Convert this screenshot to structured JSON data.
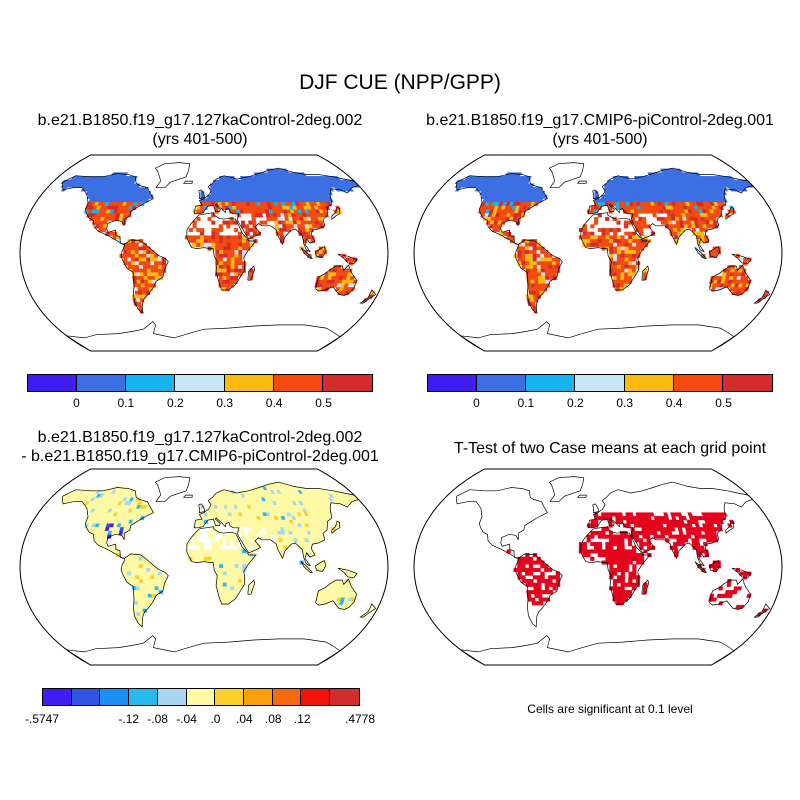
{
  "title": "DJF CUE (NPP/GPP)",
  "panels": [
    {
      "id": "case1",
      "title_lines": [
        "b.e21.B1850.f19_g17.127kaControl-2deg.002",
        "(yrs 401-500)"
      ],
      "colorbar": {
        "colors": [
          "#3f1cf0",
          "#3b6fe3",
          "#17b3ee",
          "#c7e7f6",
          "#fbb911",
          "#f34a0f",
          "#d42b2b"
        ],
        "labels": [
          "0",
          "0.1",
          "0.2",
          "0.3",
          "0.4",
          "0.5"
        ]
      }
    },
    {
      "id": "case2",
      "title_lines": [
        "b.e21.B1850.f19_g17.CMIP6-piControl-2deg.001",
        "(yrs 401-500)"
      ],
      "colorbar": {
        "colors": [
          "#3f1cf0",
          "#3b6fe3",
          "#17b3ee",
          "#c7e7f6",
          "#fbb911",
          "#f34a0f",
          "#d42b2b"
        ],
        "labels": [
          "0",
          "0.1",
          "0.2",
          "0.3",
          "0.4",
          "0.5"
        ]
      }
    },
    {
      "id": "difference",
      "title_lines": [
        "b.e21.B1850.f19_g17.127kaControl-2deg.002",
        "- b.e21.B1850.f19_g17.CMIP6-piControl-2deg.001"
      ],
      "colorbar": {
        "colors": [
          "#3f1cf0",
          "#2e54e0",
          "#1d8ff0",
          "#27b9f0",
          "#a6d6f2",
          "#fdf9a4",
          "#fbd02c",
          "#f9a20f",
          "#f46a0f",
          "#f1140d",
          "#d22d2d"
        ],
        "labels": [
          "-.5747",
          "-.12",
          "-.08",
          "-.04",
          ".0",
          ".04",
          ".08",
          ".12",
          ".4778"
        ]
      }
    },
    {
      "id": "ttest",
      "title_lines": [
        "T-Test of two Case means at each grid point"
      ],
      "note": "Cells are significant at 0.1 level",
      "fill_color": "#e6001c"
    }
  ]
}
